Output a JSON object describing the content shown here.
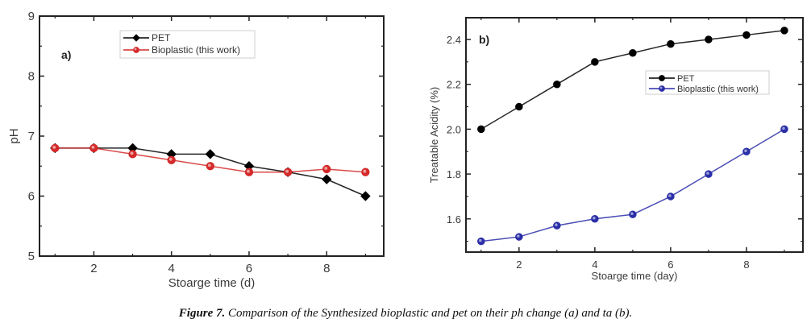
{
  "chart_data": [
    {
      "type": "line",
      "panel_label": "a)",
      "title": "",
      "xlabel": "Stoarge time (d)",
      "ylabel": "pH",
      "xlim": [
        0.6,
        9.47
      ],
      "ylim": [
        5,
        9
      ],
      "xticks": [
        2,
        4,
        6,
        8
      ],
      "yticks": [
        5,
        6,
        7,
        8,
        9
      ],
      "x_minor_ticks": [
        1,
        3,
        5,
        7,
        9
      ],
      "y_minor_ticks": [
        5.5,
        6.5,
        7.5,
        8.5
      ],
      "grid": false,
      "legend_position": "top-center",
      "x": [
        1,
        2,
        3,
        4,
        5,
        6,
        7,
        8,
        9
      ],
      "series": [
        {
          "name": "PET",
          "color": "#000000",
          "marker": "diamond",
          "values": [
            6.8,
            6.8,
            6.8,
            6.7,
            6.7,
            6.5,
            6.4,
            6.28,
            6.0
          ]
        },
        {
          "name": "Bioplastic (this work)",
          "color": "#d42a2a",
          "marker": "circle",
          "values": [
            6.8,
            6.8,
            6.7,
            6.6,
            6.5,
            6.4,
            6.4,
            6.45,
            6.4
          ]
        }
      ]
    },
    {
      "type": "line",
      "panel_label": "b)",
      "title": "",
      "xlabel": "Stoarge time (day)",
      "ylabel": "Treatable Acidity (%)",
      "xlim": [
        0.6,
        9.49
      ],
      "ylim": [
        1.452,
        2.497
      ],
      "xticks": [
        2,
        4,
        6,
        8
      ],
      "yticks": [
        1.6,
        1.8,
        2.0,
        2.2,
        2.4
      ],
      "ytick_labels": [
        "1.6",
        "1.8",
        "2.0",
        "2.2",
        "2.4"
      ],
      "x_minor_ticks": [
        1,
        3,
        5,
        7,
        9
      ],
      "y_minor_ticks": [
        1.5,
        1.7,
        1.9,
        2.1,
        2.3
      ],
      "grid": false,
      "legend_position": "right-upper",
      "x": [
        1,
        2,
        3,
        4,
        5,
        6,
        7,
        8,
        9
      ],
      "series": [
        {
          "name": "PET",
          "color": "#000000",
          "marker": "circle",
          "values": [
            2.0,
            2.1,
            2.2,
            2.3,
            2.34,
            2.38,
            2.4,
            2.42,
            2.44
          ]
        },
        {
          "name": "Bioplastic (this work)",
          "color": "#2b2fa8",
          "marker": "circle",
          "values": [
            1.5,
            1.52,
            1.57,
            1.6,
            1.62,
            1.7,
            1.8,
            1.9,
            2.0
          ]
        }
      ]
    }
  ],
  "caption": {
    "label": "Figure 7.",
    "text": " Comparison of the Synthesized bioplastic and pet on their ph change (a) and ta (b)."
  }
}
